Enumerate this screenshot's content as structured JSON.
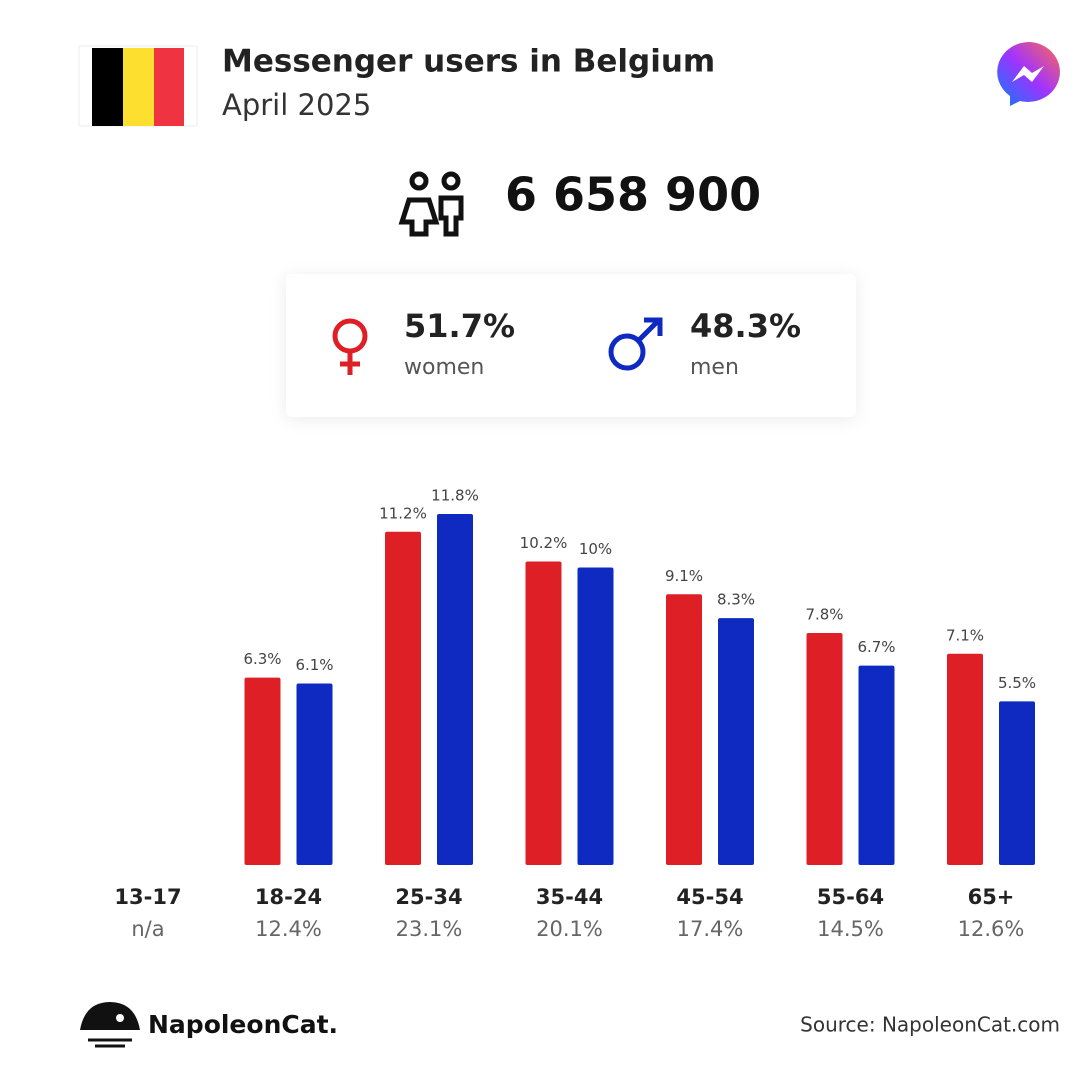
{
  "header": {
    "title": "Messenger users in Belgium",
    "subtitle": "April 2025",
    "total": "6 658 900"
  },
  "chart_data": {
    "type": "bar",
    "categories": [
      "13-17",
      "18-24",
      "25-34",
      "35-44",
      "45-54",
      "55-64",
      "65+"
    ],
    "group_totals": [
      "n/a",
      "12.4%",
      "23.1%",
      "20.1%",
      "17.4%",
      "14.5%",
      "12.6%"
    ],
    "series": [
      {
        "name": "women",
        "share": "51.7%",
        "color": "#de1f26",
        "values": [
          null,
          6.3,
          11.2,
          10.2,
          9.1,
          7.8,
          7.1
        ],
        "value_labels": [
          null,
          "6.3%",
          "11.2%",
          "10.2%",
          "9.1%",
          "7.8%",
          "7.1%"
        ]
      },
      {
        "name": "men",
        "share": "48.3%",
        "color": "#0f2ac1",
        "values": [
          null,
          6.1,
          11.8,
          10,
          8.3,
          6.7,
          5.5
        ],
        "value_labels": [
          null,
          "6.1%",
          "11.8%",
          "10%",
          "8.3%",
          "6.7%",
          "5.5%"
        ]
      }
    ],
    "ylim": [
      0,
      12
    ]
  },
  "footer": {
    "brand": "NapoleonCat.",
    "source": "Source: NapoleonCat.com"
  }
}
